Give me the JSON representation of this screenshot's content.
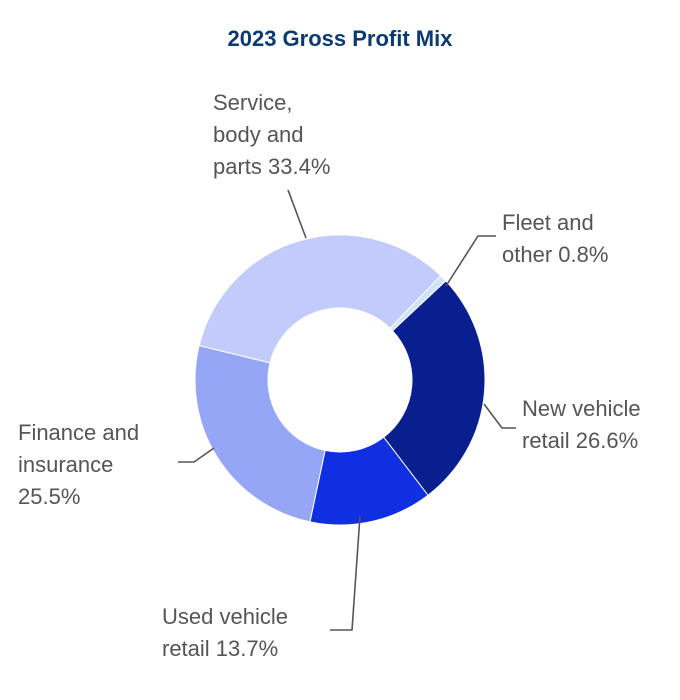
{
  "chart_data": {
    "type": "pie",
    "title": "2023 Gross Profit Mix",
    "donut": true,
    "slices": [
      {
        "label_lines": [
          "Fleet and",
          "other 0.8%"
        ],
        "value": 0.8,
        "color": "#cfe3f7"
      },
      {
        "label_lines": [
          "New vehicle",
          "retail 26.6%"
        ],
        "value": 26.6,
        "color": "#0a1f8f"
      },
      {
        "label_lines": [
          "Used vehicle",
          "retail 13.7%"
        ],
        "value": 13.7,
        "color": "#0f2fe0"
      },
      {
        "label_lines": [
          "Finance and",
          "insurance",
          "25.5%"
        ],
        "value": 25.5,
        "color": "#95a6f6"
      },
      {
        "label_lines": [
          "Service,",
          "body and",
          "parts 33.4%"
        ],
        "value": 33.4,
        "color": "#c2cbfb"
      }
    ]
  }
}
